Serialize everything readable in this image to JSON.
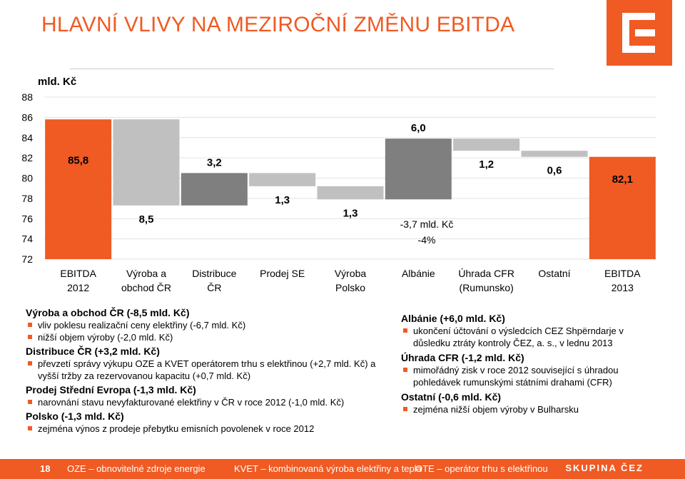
{
  "title": "HLAVNÍ VLIVY NA MEZIROČNÍ ZMĚNU EBITDA",
  "colors": {
    "accent": "#f05a23",
    "dark": "#7f7f7f",
    "light": "#c0c0c0",
    "text": "#000000"
  },
  "logo_icon": "cez-logo-icon",
  "chart_data": {
    "type": "bar",
    "subtype": "waterfall",
    "ylabel": "mld. Kč",
    "ylim": [
      72,
      88
    ],
    "yticks": [
      "88",
      "86",
      "84",
      "82",
      "80",
      "78",
      "76",
      "74",
      "72"
    ],
    "categories": [
      "EBITDA\n2012",
      "Výroba a\nobchod ČR",
      "Distribuce\nČR",
      "Prodej SE",
      "Výroba\nPolsko",
      "Albánie",
      "Úhrada CFR\n(Rumunsko)",
      "Ostatní",
      "EBITDA\n2013"
    ],
    "bars": [
      {
        "base": 72,
        "top": 85.8,
        "kind": "total",
        "label": "85,8"
      },
      {
        "base": 77.3,
        "top": 85.8,
        "kind": "decrease",
        "label": "8,5"
      },
      {
        "base": 77.3,
        "top": 80.5,
        "kind": "increase",
        "label": "3,2"
      },
      {
        "base": 79.2,
        "top": 80.5,
        "kind": "decrease",
        "label": "1,3"
      },
      {
        "base": 77.9,
        "top": 79.2,
        "kind": "decrease",
        "label": "1,3"
      },
      {
        "base": 77.9,
        "top": 83.9,
        "kind": "increase",
        "label": "6,0"
      },
      {
        "base": 82.7,
        "top": 83.9,
        "kind": "decrease",
        "label": "1,2"
      },
      {
        "base": 82.1,
        "top": 82.7,
        "kind": "decrease",
        "label": "0,6"
      },
      {
        "base": 72,
        "top": 82.1,
        "kind": "total",
        "label": "82,1"
      }
    ],
    "annotation": [
      "-3,7 mld. Kč",
      "-4%"
    ],
    "grid": true,
    "legend": "none"
  },
  "left_panel": [
    {
      "heading": "Výroba a obchod ČR (-8,5 mld. Kč)",
      "items": [
        "vliv poklesu realizační ceny elektřiny (-6,7 mld. Kč)",
        "nižší objem výroby (-2,0 mld. Kč)"
      ]
    },
    {
      "heading": "Distribuce ČR (+3,2 mld. Kč)",
      "items": [
        "převzetí správy výkupu OZE a KVET operátorem trhu s elektřinou (+2,7 mld. Kč) a vyšší tržby za rezervovanou kapacitu (+0,7 mld. Kč)"
      ]
    },
    {
      "heading": "Prodej Střední Evropa (-1,3 mld. Kč)",
      "items": [
        "narovnání stavu nevyfakturované elektřiny v ČR v roce 2012 (-1,0 mld. Kč)"
      ]
    },
    {
      "heading": "Polsko (-1,3 mld. Kč)",
      "items": [
        "zejména výnos z prodeje přebytku emisních povolenek v roce 2012"
      ]
    }
  ],
  "right_panel": [
    {
      "heading": "Albánie (+6,0 mld. Kč)",
      "items": [
        "ukončení účtování o výsledcích CEZ Shpërndarje v důsledku ztráty kontroly ČEZ, a. s., v lednu 2013"
      ]
    },
    {
      "heading": "Úhrada CFR (-1,2 mld. Kč)",
      "items": [
        "mimořádný zisk v roce 2012 související s úhradou pohledávek rumunskými státními drahami (CFR)"
      ]
    },
    {
      "heading": "Ostatní (-0,6 mld. Kč)",
      "items": [
        "zejména nižší objem výroby v Bulharsku"
      ]
    }
  ],
  "footer": {
    "page": "18",
    "glossary": [
      "OZE – obnovitelné zdroje energie",
      "KVET – kombinovaná výroba elektřiny a tepla",
      "OTE – operátor trhu s elektřinou"
    ],
    "brand": "SKUPINA ČEZ"
  }
}
